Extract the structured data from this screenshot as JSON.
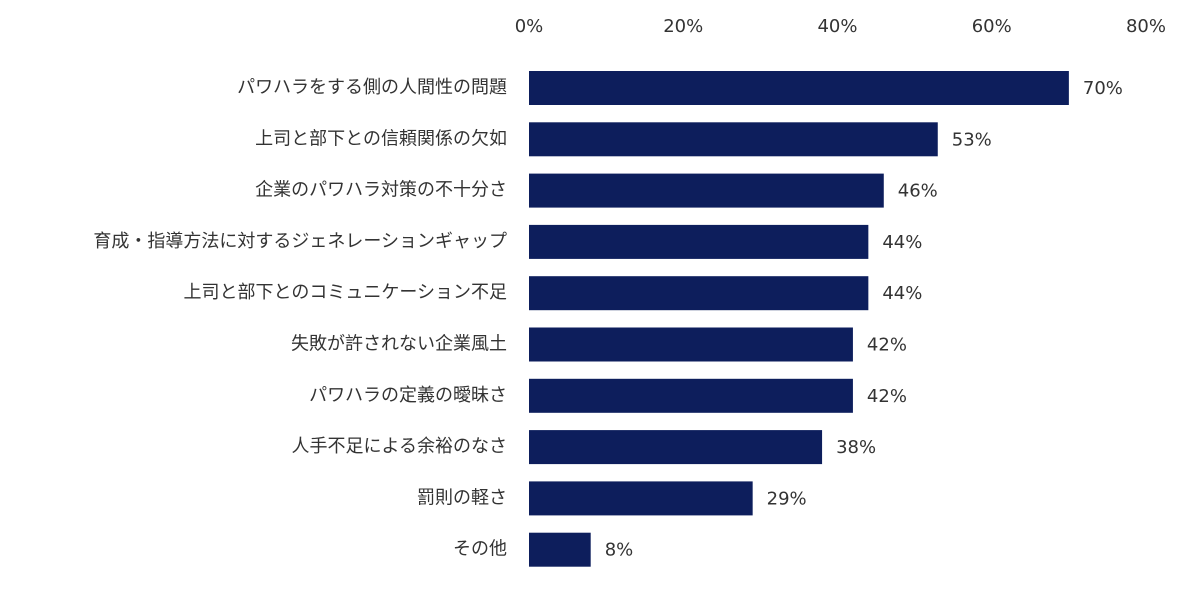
{
  "chart_data": {
    "type": "bar",
    "orientation": "horizontal",
    "categories": [
      "パワハラをする側の人間性の問題",
      "上司と部下との信頼関係の欠如",
      "企業のパワハラ対策の不十分さ",
      "育成・指導方法に対するジェネレーションギャップ",
      "上司と部下とのコミュニケーション不足",
      "失敗が許されない企業風土",
      "パワハラの定義の曖昧さ",
      "人手不足による余裕のなさ",
      "罰則の軽さ",
      "その他"
    ],
    "values": [
      70,
      53,
      46,
      44,
      44,
      42,
      42,
      38,
      29,
      8
    ],
    "value_labels": [
      "70%",
      "53%",
      "46%",
      "44%",
      "44%",
      "42%",
      "42%",
      "38%",
      "29%",
      "8%"
    ],
    "xlim": [
      0,
      80
    ],
    "ticks": [
      0,
      20,
      40,
      60,
      80
    ],
    "tick_labels": [
      "0%",
      "20%",
      "40%",
      "60%",
      "80%"
    ],
    "axis_position": "top",
    "grid": false,
    "legend": "none",
    "bar_color": "#0d1e5c",
    "title": "",
    "xlabel": "",
    "ylabel": ""
  }
}
